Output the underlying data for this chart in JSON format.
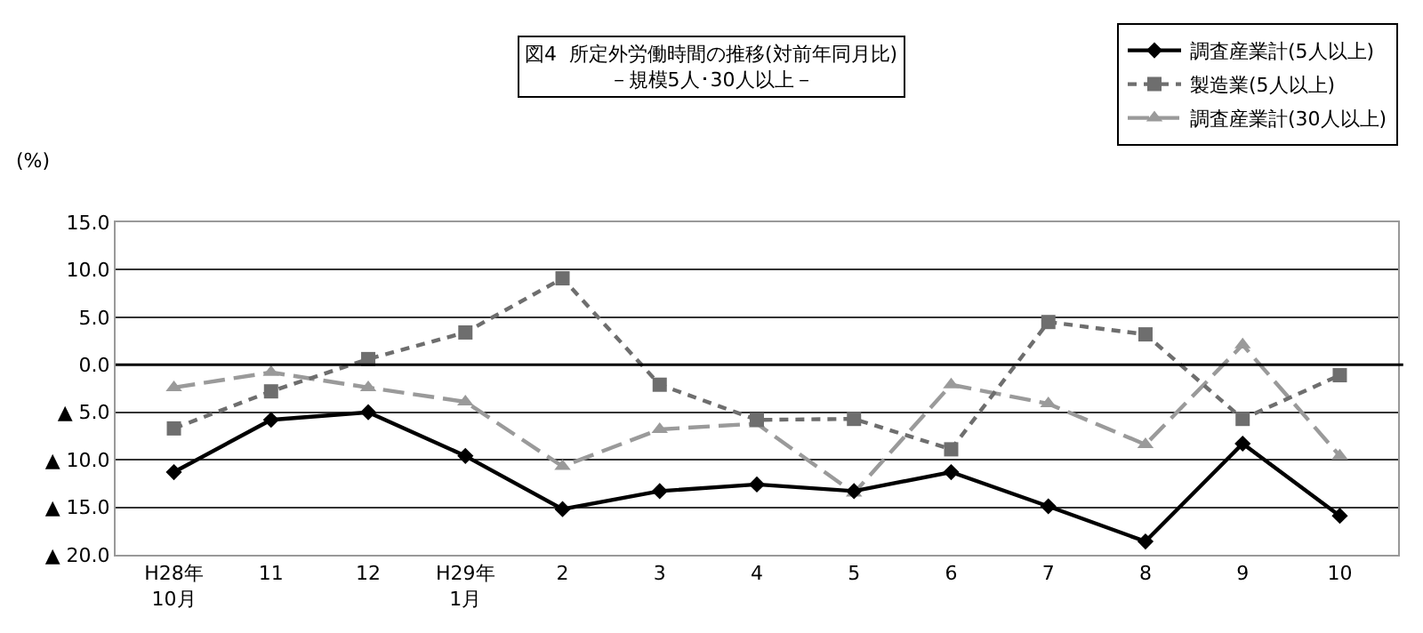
{
  "chart_data": {
    "type": "line",
    "title": "図4  所定外労働時間の推移(対前年同月比)",
    "subtitle": "－規模5人･30人以上－",
    "ylabel": "(%)",
    "categories": [
      "H28年\n10月",
      "11",
      "12",
      "H29年\n1月",
      "2",
      "3",
      "4",
      "5",
      "6",
      "7",
      "8",
      "9",
      "10"
    ],
    "series": [
      {
        "name": "調査産業計(5人以上)",
        "color": "#000000",
        "marker": "diamond",
        "line_style": "solid",
        "values": [
          -11.3,
          -5.8,
          -5.0,
          -9.6,
          -15.2,
          -13.3,
          -12.6,
          -13.3,
          -11.3,
          -14.9,
          -18.6,
          -8.3,
          -15.9
        ]
      },
      {
        "name": "製造業(5人以上)",
        "color": "#6e6e6e",
        "marker": "square",
        "line_style": "dotted",
        "values": [
          -6.7,
          -2.8,
          0.6,
          3.4,
          9.1,
          -2.1,
          -5.8,
          -5.7,
          -8.9,
          4.5,
          3.2,
          -5.7,
          -1.1
        ]
      },
      {
        "name": "調査産業計(30人以上)",
        "color": "#9a9a9a",
        "marker": "triangle",
        "line_style": "dashed",
        "values": [
          -2.4,
          -0.8,
          -2.4,
          -3.9,
          -10.7,
          -6.8,
          -6.2,
          -13.5,
          -2.1,
          -4.1,
          -8.4,
          2.1,
          -9.6
        ]
      }
    ],
    "ylim": [
      -20,
      15
    ],
    "yticks": [
      {
        "value": -20,
        "label": "▲ 20.0"
      },
      {
        "value": -15,
        "label": "▲ 15.0"
      },
      {
        "value": -10,
        "label": "▲ 10.0"
      },
      {
        "value": -5,
        "label": "▲ 5.0"
      },
      {
        "value": 0,
        "label": "0.0"
      },
      {
        "value": 5,
        "label": "5.0"
      },
      {
        "value": 10,
        "label": "10.0"
      },
      {
        "value": 15,
        "label": "15.0"
      }
    ],
    "ref_lines": [
      {
        "axis": "y",
        "value": 0,
        "color": "#000000"
      }
    ],
    "grid": "y",
    "legend": "top right"
  }
}
